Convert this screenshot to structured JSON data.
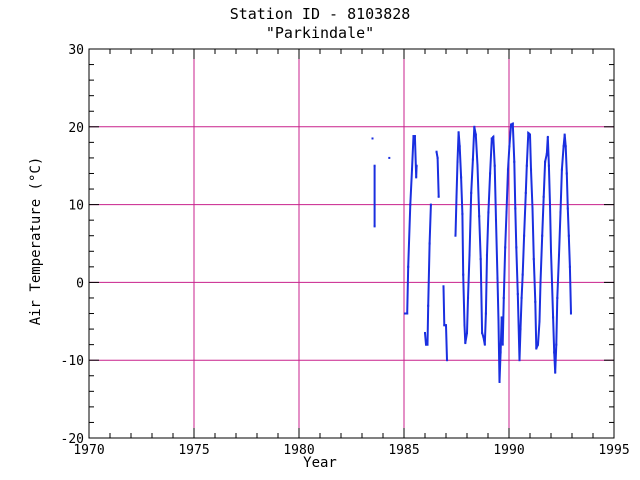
{
  "chart_data": {
    "type": "line",
    "title": "Station ID - 8103828",
    "subtitle": "\"Parkindale\"",
    "xlabel": "Year",
    "ylabel": "Air Temperature (°C)",
    "xlim": [
      1970,
      1995
    ],
    "ylim": [
      -20,
      30
    ],
    "x_ticks": [
      "1970",
      "1975",
      "1980",
      "1985",
      "1990",
      "1995"
    ],
    "y_ticks": [
      "-20",
      "-10",
      "0",
      "10",
      "20",
      "30"
    ],
    "grid": {
      "vertical_years": [
        1975,
        1980,
        1985,
        1990
      ],
      "horizontal_values": [
        -10,
        0,
        10,
        20
      ]
    },
    "colors": {
      "series": "#1a2fe0",
      "grid": "#c8208c",
      "axes": "#000000"
    },
    "series": [
      {
        "segments": [
          [
            [
              1983.5,
              18.5
            ]
          ],
          [
            [
              1983.6,
              15.0
            ],
            [
              1983.6,
              7.2
            ]
          ],
          [
            [
              1984.3,
              16.0
            ]
          ],
          [
            [
              1985.05,
              -4.0
            ],
            [
              1985.15,
              -4.0
            ],
            [
              1985.2,
              2.0
            ],
            [
              1985.3,
              10.0
            ],
            [
              1985.38,
              14.5
            ],
            [
              1985.45,
              18.8
            ],
            [
              1985.52,
              18.8
            ],
            [
              1985.58,
              13.5
            ],
            [
              1985.6,
              15.0
            ]
          ],
          [
            [
              1986.0,
              -6.5
            ],
            [
              1986.05,
              -8.0
            ],
            [
              1986.12,
              -8.0
            ],
            [
              1986.15,
              -3.0
            ],
            [
              1986.22,
              5.0
            ],
            [
              1986.28,
              10.0
            ]
          ],
          [
            [
              1986.55,
              16.8
            ],
            [
              1986.6,
              16.0
            ],
            [
              1986.65,
              11.0
            ]
          ],
          [
            [
              1986.88,
              -0.5
            ],
            [
              1986.92,
              -5.5
            ],
            [
              1987.0,
              -5.5
            ],
            [
              1987.05,
              -10.0
            ]
          ],
          [
            [
              1987.45,
              6.0
            ],
            [
              1987.5,
              11.0
            ],
            [
              1987.55,
              15.5
            ],
            [
              1987.6,
              19.3
            ],
            [
              1987.65,
              17.5
            ],
            [
              1987.72,
              13.5
            ],
            [
              1987.78,
              8.8
            ],
            [
              1987.82,
              1.0
            ],
            [
              1987.88,
              -5.5
            ],
            [
              1987.92,
              -7.8
            ],
            [
              1988.0,
              -6.5
            ],
            [
              1988.05,
              -2.0
            ],
            [
              1988.12,
              3.5
            ],
            [
              1988.2,
              11.5
            ],
            [
              1988.28,
              15.8
            ],
            [
              1988.35,
              20.0
            ],
            [
              1988.42,
              19.0
            ],
            [
              1988.5,
              15.0
            ],
            [
              1988.58,
              8.5
            ],
            [
              1988.65,
              3.0
            ],
            [
              1988.72,
              -6.5
            ],
            [
              1988.78,
              -7.0
            ],
            [
              1988.85,
              -8.0
            ],
            [
              1988.9,
              -4.0
            ],
            [
              1988.95,
              3.5
            ],
            [
              1989.02,
              9.0
            ],
            [
              1989.1,
              14.0
            ],
            [
              1989.18,
              18.5
            ],
            [
              1989.25,
              18.7
            ],
            [
              1989.32,
              15.0
            ],
            [
              1989.38,
              8.0
            ],
            [
              1989.45,
              0.5
            ],
            [
              1989.5,
              -5.0
            ],
            [
              1989.55,
              -12.8
            ],
            [
              1989.6,
              -9.0
            ],
            [
              1989.65,
              -4.5
            ],
            [
              1989.7,
              -8.0
            ],
            [
              1989.75,
              -2.0
            ],
            [
              1989.82,
              4.5
            ],
            [
              1989.88,
              9.0
            ],
            [
              1989.95,
              14.5
            ],
            [
              1990.02,
              17.5
            ],
            [
              1990.1,
              20.3
            ],
            [
              1990.18,
              20.4
            ],
            [
              1990.25,
              15.5
            ],
            [
              1990.3,
              9.5
            ],
            [
              1990.35,
              4.5
            ],
            [
              1990.42,
              -1.5
            ],
            [
              1990.5,
              -10.0
            ],
            [
              1990.55,
              -6.0
            ],
            [
              1990.6,
              -2.0
            ],
            [
              1990.65,
              1.0
            ],
            [
              1990.72,
              6.0
            ],
            [
              1990.8,
              11.5
            ],
            [
              1990.85,
              15.0
            ],
            [
              1990.92,
              19.2
            ],
            [
              1991.0,
              19.0
            ],
            [
              1991.05,
              14.5
            ],
            [
              1991.12,
              9.5
            ],
            [
              1991.18,
              3.0
            ],
            [
              1991.25,
              -2.5
            ],
            [
              1991.3,
              -8.5
            ],
            [
              1991.38,
              -8.0
            ],
            [
              1991.45,
              -5.0
            ],
            [
              1991.5,
              0.0
            ],
            [
              1991.58,
              6.0
            ],
            [
              1991.65,
              11.0
            ],
            [
              1991.72,
              15.5
            ],
            [
              1991.8,
              16.5
            ],
            [
              1991.85,
              18.7
            ],
            [
              1991.9,
              15.0
            ],
            [
              1991.95,
              10.0
            ],
            [
              1992.0,
              4.0
            ],
            [
              1992.05,
              0.0
            ],
            [
              1992.1,
              -4.5
            ],
            [
              1992.15,
              -9.0
            ],
            [
              1992.2,
              -11.6
            ],
            [
              1992.25,
              -8.0
            ],
            [
              1992.3,
              -2.0
            ],
            [
              1992.38,
              3.5
            ],
            [
              1992.45,
              9.0
            ],
            [
              1992.52,
              14.5
            ],
            [
              1992.6,
              17.5
            ],
            [
              1992.65,
              19.0
            ],
            [
              1992.7,
              17.5
            ],
            [
              1992.75,
              14.0
            ],
            [
              1992.8,
              9.5
            ],
            [
              1992.85,
              6.0
            ],
            [
              1992.9,
              2.0
            ],
            [
              1992.95,
              -4.0
            ]
          ]
        ]
      }
    ]
  }
}
